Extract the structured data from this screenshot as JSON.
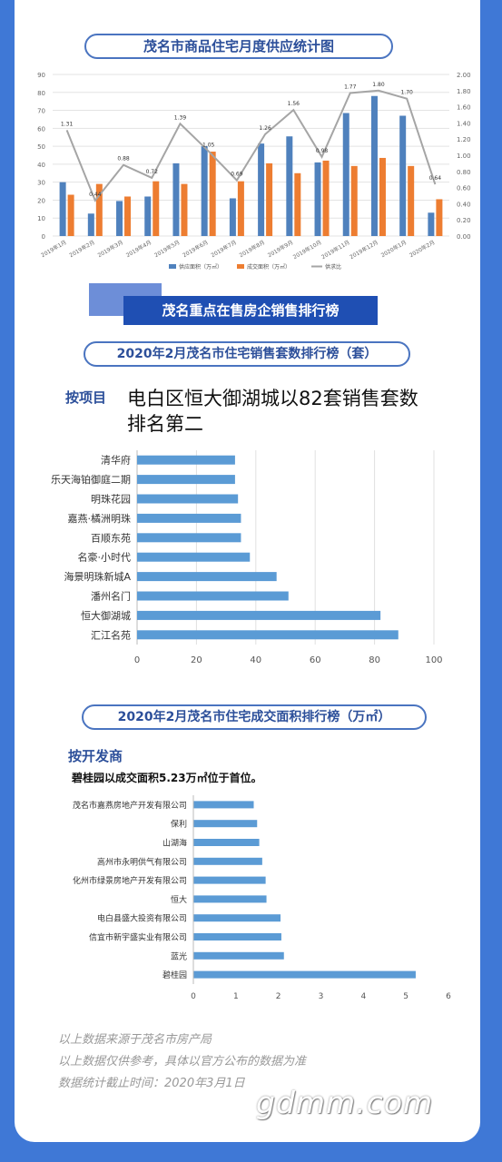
{
  "titles": {
    "chart1": "茂名市商品住宅月度供应统计图",
    "banner": "茂名重点在售房企销售排行榜",
    "chart2": "2020年2月茂名市住宅销售套数排行榜（套）",
    "chart3": "2020年2月茂名市住宅成交面积排行榜（万㎡）"
  },
  "section2": {
    "label": "按项目",
    "headline_line1": "电白区恒大御湖城以82套销售套数",
    "headline_line2": "排名第二"
  },
  "section3": {
    "label": "按开发商",
    "subline": "碧桂园以成交面积5.23万㎡位于首位。"
  },
  "footer": {
    "line1": "以上数据来源于茂名市房产局",
    "line2": "以上数据仅供参考，具体以官方公布的数据为准",
    "line3": "数据统计截止时间：2020年3月1日"
  },
  "watermark": "gdmm.com",
  "colors": {
    "supply": "#4f81bd",
    "deal": "#ed7d31",
    "ratio": "#a5a5a5",
    "bar": "#5b9bd5"
  },
  "chart_data": [
    {
      "type": "bar",
      "categories": [
        "2019年1月",
        "2019年2月",
        "2019年3月",
        "2019年4月",
        "2019年5月",
        "2019年6月",
        "2019年7月",
        "2019年8月",
        "2019年9月",
        "2019年10月",
        "2019年11月",
        "2019年12月",
        "2020年1月",
        "2020年2月"
      ],
      "series": [
        {
          "name": "供应面积（万㎡）",
          "values": [
            30,
            12.5,
            19.5,
            22,
            40.5,
            50,
            21,
            51.5,
            55.5,
            41,
            68.5,
            78,
            67,
            13
          ]
        },
        {
          "name": "成交面积（万㎡）",
          "values": [
            23,
            29,
            22,
            30.5,
            29,
            47,
            30.5,
            40.5,
            35,
            42,
            39,
            43.5,
            39,
            20.5
          ]
        },
        {
          "name": "供求比",
          "values": [
            1.31,
            0.44,
            0.88,
            0.72,
            1.39,
            1.05,
            0.69,
            1.26,
            1.56,
            0.98,
            1.77,
            1.8,
            1.7,
            0.64
          ],
          "axis": "right"
        }
      ],
      "ratio_labels": [
        "1.31",
        "0.44",
        "0.88",
        "0.72",
        "1.39",
        "1.05",
        "0.69",
        "1.26",
        "1.56",
        "0.98",
        "1.77",
        "1.80",
        "1.70",
        "0.64"
      ],
      "ylim": [
        0,
        90
      ],
      "y_ticks": [
        "0",
        "10",
        "20",
        "30",
        "40",
        "50",
        "60",
        "70",
        "80",
        "90"
      ],
      "y2lim": [
        0,
        2
      ],
      "y2_ticks": [
        "0.00",
        "0.20",
        "0.40",
        "0.60",
        "0.80",
        "1.00",
        "1.20",
        "1.40",
        "1.60",
        "1.80",
        "2.00"
      ],
      "grid": true,
      "legend": "bottom"
    },
    {
      "type": "bar",
      "orientation": "horizontal",
      "categories": [
        "清华府",
        "乐天海铂御庭二期",
        "明珠花园",
        "嘉燕·橘洲明珠",
        "百顺东苑",
        "名豪·小时代",
        "海景明珠新城A",
        "潘州名门",
        "恒大御湖城",
        "汇江名苑"
      ],
      "values": [
        33,
        33,
        34,
        35,
        35,
        38,
        47,
        51,
        82,
        88
      ],
      "xlim": [
        0,
        100
      ],
      "x_ticks": [
        "0",
        "20",
        "40",
        "60",
        "80",
        "100"
      ],
      "grid": true
    },
    {
      "type": "bar",
      "orientation": "horizontal",
      "categories": [
        "茂名市嘉燕房地产开发有限公司",
        "保利",
        "山湖海",
        "高州市永明供气有限公司",
        "化州市绿景房地产开发有限公司",
        "恒大",
        "电白县盛大投资有限公司",
        "信宜市新宇盛实业有限公司",
        "蓝光",
        "碧桂园"
      ],
      "values": [
        1.42,
        1.5,
        1.55,
        1.62,
        1.7,
        1.72,
        2.05,
        2.07,
        2.13,
        5.23
      ],
      "xlim": [
        0,
        6
      ],
      "x_ticks": [
        "0",
        "1",
        "2",
        "3",
        "4",
        "5",
        "6"
      ],
      "grid": false
    }
  ]
}
